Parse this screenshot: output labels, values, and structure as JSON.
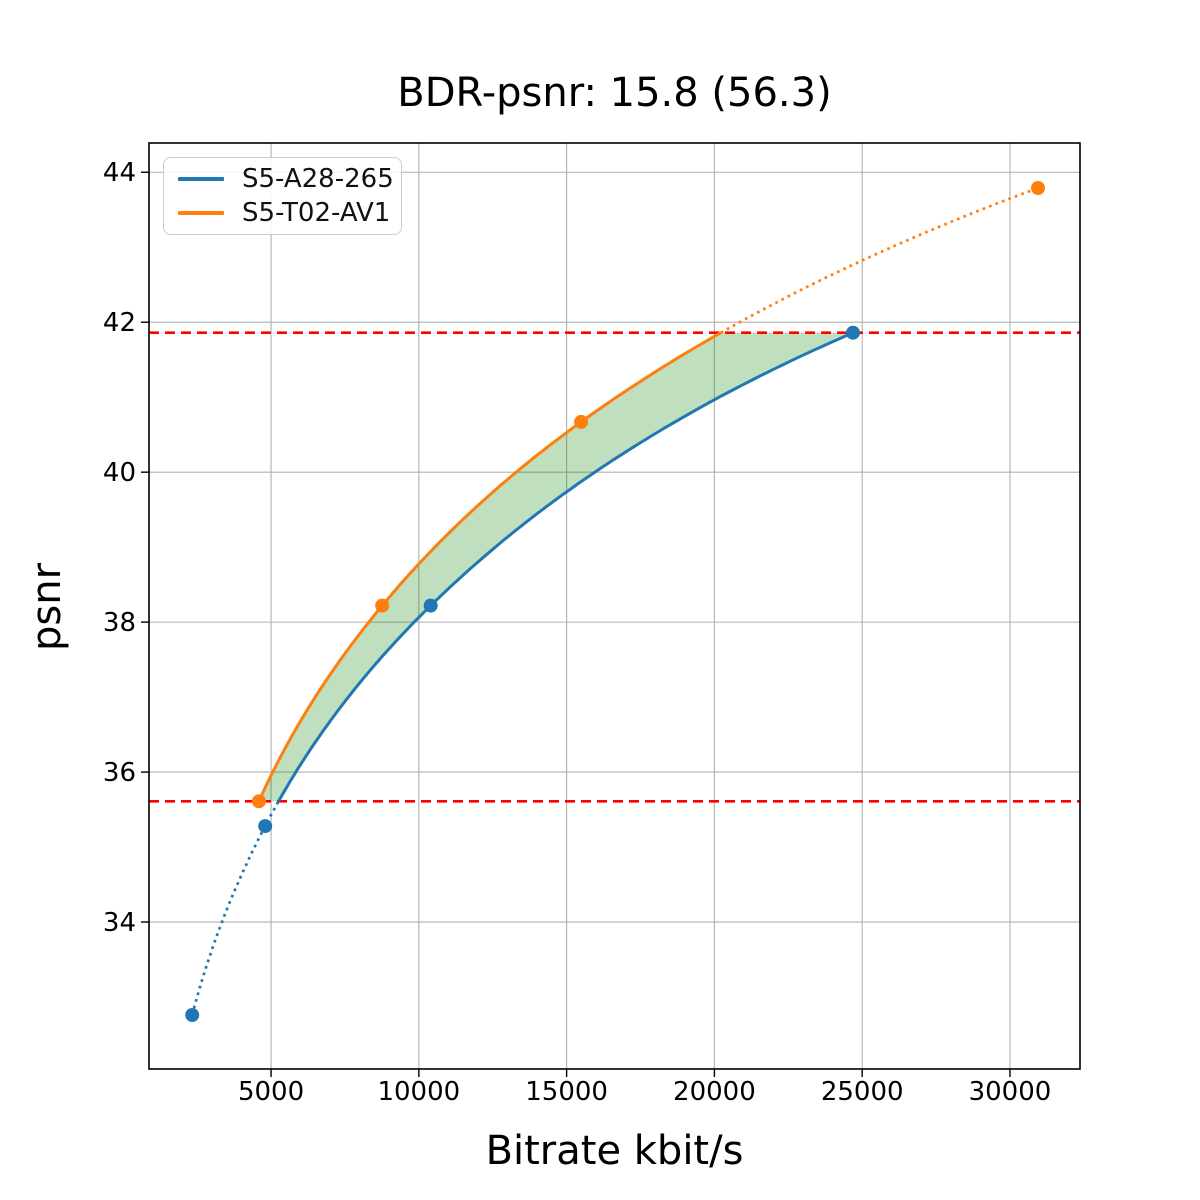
{
  "title": "BDR-psnr: 15.8 (56.3)",
  "legend": {
    "items": [
      {
        "label": "S5-A28-265",
        "color": "#1f77b4"
      },
      {
        "label": "S5-T02-AV1",
        "color": "#ff7f0e"
      }
    ]
  },
  "chart_data": {
    "type": "line",
    "title": "BDR-psnr: 15.8 (56.3)",
    "xlabel": "Bitrate kbit/s",
    "ylabel": "psnr",
    "xlim": [
      870,
      32370
    ],
    "ylim": [
      32.04,
      44.39
    ],
    "xticks": [
      5000,
      10000,
      15000,
      20000,
      25000,
      30000
    ],
    "yticks": [
      34,
      36,
      38,
      40,
      42,
      44
    ],
    "grid": true,
    "grid_color": "#b0b0b0",
    "legend_position": "upper left",
    "series": [
      {
        "name": "S5-A28-265",
        "color": "#1f77b4",
        "marker": "circle",
        "points": [
          [
            2330,
            32.76
          ],
          [
            4800,
            35.28
          ],
          [
            10400,
            38.22
          ],
          [
            24690,
            41.86
          ]
        ]
      },
      {
        "name": "S5-T02-AV1",
        "color": "#ff7f0e",
        "marker": "circle",
        "points": [
          [
            4590,
            35.61
          ],
          [
            8760,
            38.22
          ],
          [
            15490,
            40.67
          ],
          [
            30950,
            43.79
          ]
        ]
      }
    ],
    "reference_lines": [
      {
        "y": 35.61,
        "color": "#ff0000",
        "style": "dashed"
      },
      {
        "y": 41.86,
        "color": "#ff0000",
        "style": "dashed"
      }
    ],
    "shaded_region": {
      "between_series": [
        0,
        1
      ],
      "psnr_range": [
        35.61,
        41.86
      ],
      "color": "#008000",
      "alpha": 0.25
    }
  }
}
